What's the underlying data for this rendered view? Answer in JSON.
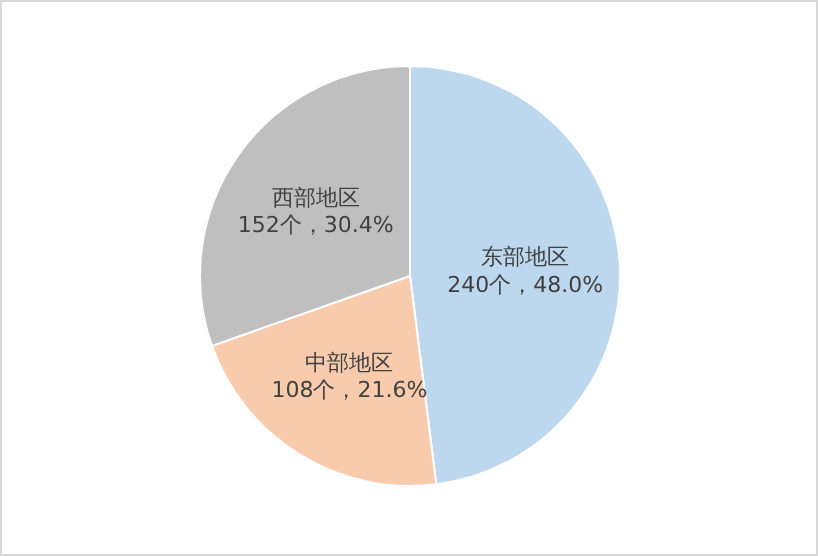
{
  "chart_data": {
    "type": "pie",
    "categories": [
      "东部地区",
      "中部地区",
      "西部地区"
    ],
    "values": [
      240,
      108,
      152
    ],
    "colors": [
      "#bdd7ee",
      "#f8cbad",
      "#bfbfbf"
    ],
    "value_labels": [
      "240个，48.0%",
      "108个，21.6%",
      "152个，30.4%"
    ]
  }
}
